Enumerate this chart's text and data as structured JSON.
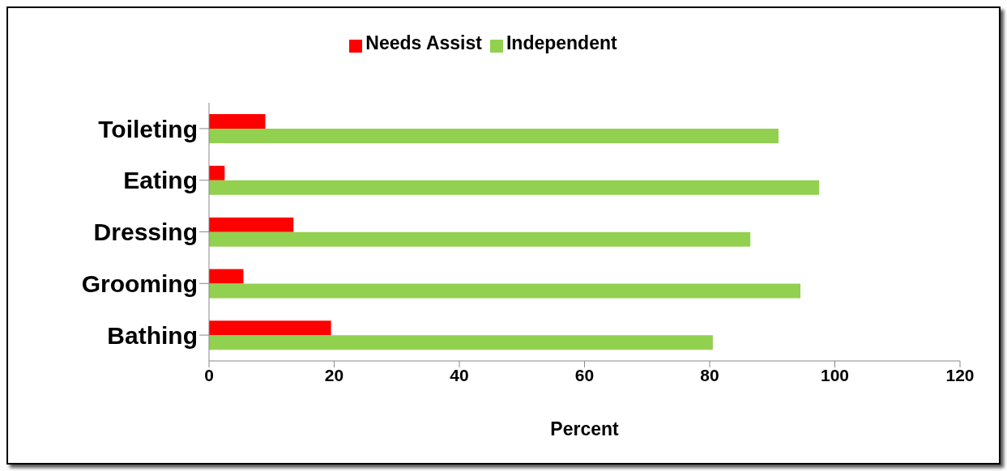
{
  "chart_data": {
    "type": "bar",
    "orientation": "horizontal",
    "xlabel": "Percent",
    "categories": [
      "Toileting",
      "Eating",
      "Dressing",
      "Grooming",
      "Bathing"
    ],
    "series": [
      {
        "name": "Needs Assist",
        "color": "#ff0000",
        "values": [
          9,
          2.5,
          13.5,
          5.5,
          19.5
        ]
      },
      {
        "name": "Independent",
        "color": "#92d050",
        "values": [
          91,
          97.5,
          86.5,
          94.5,
          80.5
        ]
      }
    ],
    "xlim": [
      0,
      120
    ],
    "xticks": [
      0,
      20,
      40,
      60,
      80,
      100,
      120
    ],
    "grid": false,
    "legend": "top"
  }
}
